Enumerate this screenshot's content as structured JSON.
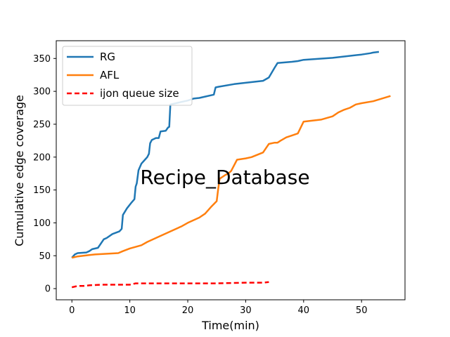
{
  "chart_data": {
    "type": "line",
    "title": "",
    "annotation": "Recipe_Database",
    "xlabel": "Time(min)",
    "ylabel": "Cumulative edge coverage",
    "xlim": [
      -2.7,
      57.5
    ],
    "ylim": [
      -17,
      377
    ],
    "xticks": [
      0,
      10,
      20,
      30,
      40,
      50
    ],
    "yticks": [
      0,
      50,
      100,
      150,
      200,
      250,
      300,
      350
    ],
    "grid": false,
    "legend_position": "top-left",
    "series": [
      {
        "name": "RG",
        "color": "#1f77b4",
        "dash": "solid",
        "points": [
          [
            0,
            47
          ],
          [
            0.5,
            52
          ],
          [
            1,
            54
          ],
          [
            2.5,
            55
          ],
          [
            3,
            57
          ],
          [
            3.5,
            60
          ],
          [
            4.5,
            62
          ],
          [
            5.5,
            75
          ],
          [
            6,
            77
          ],
          [
            7,
            83
          ],
          [
            8.2,
            87
          ],
          [
            8.6,
            91
          ],
          [
            8.8,
            112
          ],
          [
            9.5,
            122
          ],
          [
            10.3,
            131
          ],
          [
            10.8,
            136
          ],
          [
            11,
            155
          ],
          [
            11.2,
            160
          ],
          [
            11.5,
            180
          ],
          [
            12,
            190
          ],
          [
            12.5,
            195
          ],
          [
            13,
            200
          ],
          [
            13.3,
            205
          ],
          [
            13.5,
            221
          ],
          [
            13.8,
            226
          ],
          [
            14.5,
            229
          ],
          [
            15,
            229
          ],
          [
            15.3,
            239
          ],
          [
            16.2,
            240
          ],
          [
            16.6,
            245
          ],
          [
            16.8,
            246
          ],
          [
            17,
            280
          ],
          [
            20,
            286
          ],
          [
            21,
            289
          ],
          [
            22,
            290
          ],
          [
            23,
            292
          ],
          [
            24.5,
            295
          ],
          [
            24.8,
            306
          ],
          [
            25.3,
            307
          ],
          [
            28,
            311
          ],
          [
            30,
            313
          ],
          [
            33,
            316
          ],
          [
            34,
            321
          ],
          [
            35,
            336
          ],
          [
            35.5,
            343
          ],
          [
            38,
            345
          ],
          [
            39,
            346
          ],
          [
            40,
            348
          ],
          [
            45,
            351
          ],
          [
            50,
            356
          ],
          [
            51.5,
            358
          ],
          [
            52,
            359
          ],
          [
            53,
            360
          ]
        ]
      },
      {
        "name": "AFL",
        "color": "#ff7f0e",
        "dash": "solid",
        "points": [
          [
            0,
            47
          ],
          [
            1,
            49
          ],
          [
            3,
            51
          ],
          [
            4,
            52
          ],
          [
            8,
            54
          ],
          [
            8.8,
            57
          ],
          [
            10,
            61
          ],
          [
            12,
            66
          ],
          [
            13,
            71
          ],
          [
            15,
            79
          ],
          [
            17,
            87
          ],
          [
            19,
            95
          ],
          [
            20,
            100
          ],
          [
            22,
            108
          ],
          [
            23,
            114
          ],
          [
            24,
            124
          ],
          [
            25,
            133
          ],
          [
            25.2,
            148
          ],
          [
            25.5,
            167
          ],
          [
            26.5,
            173
          ],
          [
            27,
            175
          ],
          [
            27.5,
            179
          ],
          [
            28.5,
            196
          ],
          [
            30,
            198
          ],
          [
            31,
            200
          ],
          [
            33,
            207
          ],
          [
            34,
            220
          ],
          [
            35,
            222
          ],
          [
            35.5,
            222
          ],
          [
            36,
            225
          ],
          [
            37,
            230
          ],
          [
            38,
            233
          ],
          [
            39,
            236
          ],
          [
            40,
            254
          ],
          [
            43,
            257
          ],
          [
            45,
            262
          ],
          [
            46,
            268
          ],
          [
            47,
            272
          ],
          [
            48,
            275
          ],
          [
            49,
            280
          ],
          [
            50,
            282
          ],
          [
            52,
            285
          ],
          [
            55,
            293
          ]
        ]
      },
      {
        "name": "ijon queue size",
        "color": "#ff0000",
        "dash": "dashed",
        "points": [
          [
            0,
            2
          ],
          [
            1,
            4
          ],
          [
            2,
            4
          ],
          [
            3,
            5
          ],
          [
            5,
            6
          ],
          [
            8,
            6
          ],
          [
            10,
            6
          ],
          [
            10.5,
            7
          ],
          [
            11,
            8
          ],
          [
            15,
            8
          ],
          [
            20,
            8
          ],
          [
            25,
            8
          ],
          [
            30,
            9
          ],
          [
            33,
            9
          ],
          [
            34,
            10
          ]
        ]
      }
    ]
  }
}
